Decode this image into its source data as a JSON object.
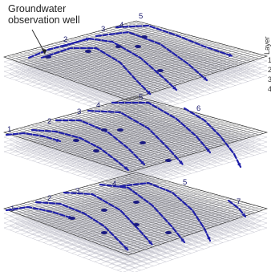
{
  "annotation": {
    "line1": "Groundwater",
    "line2": "observation well"
  },
  "legend": {
    "heading": "Layer",
    "items": [
      "1",
      "2",
      "3",
      "4"
    ]
  },
  "panels": [
    {
      "labels": [
        "2",
        "3",
        "4",
        "5"
      ]
    },
    {
      "labels": [
        "1",
        "2",
        "3",
        "4",
        "5",
        "6"
      ]
    },
    {
      "labels": [
        "1",
        "2",
        "3",
        "4",
        "5",
        "7"
      ]
    }
  ],
  "colors": {
    "grid": "#2a2a2a",
    "grid_faint": "#b8b8c4",
    "flowline": "#1f1fa8",
    "well": "#1a1a80",
    "text": "#222222"
  }
}
